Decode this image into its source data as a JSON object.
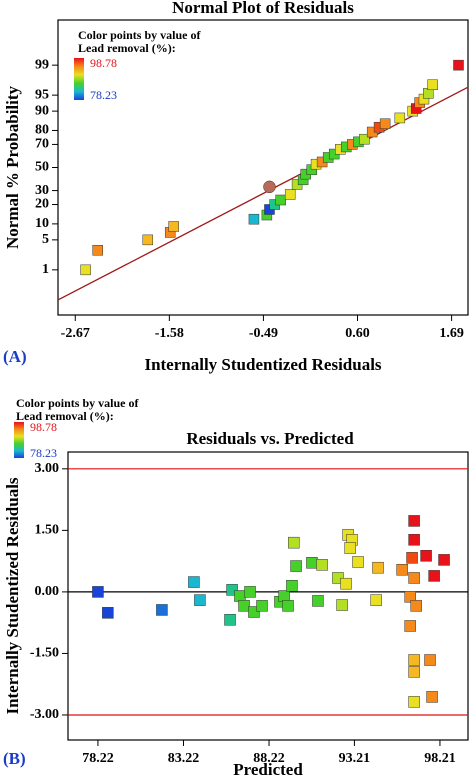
{
  "chart_data": [
    {
      "type": "scatter",
      "title": "Normal Plot of Residuals",
      "panel": "(A)",
      "x_label": "Internally Studentized Residuals",
      "y_label": "Normal % Probability",
      "yscale": "probability",
      "xlim": [
        -2.87,
        1.88
      ],
      "xticks": [
        -2.67,
        -1.58,
        -0.49,
        {
          "value": 0.6,
          "label": "0.60"
        },
        1.69
      ],
      "ylim": [
        0.04,
        99.96
      ],
      "yticks": [
        1,
        5,
        10,
        20,
        30,
        50,
        70,
        80,
        90,
        95,
        99
      ],
      "legend": {
        "title": "Color points by value of",
        "subtitle": "Lead removal (%):",
        "max": 98.78,
        "min": 78.23,
        "max_color": "#e8121a",
        "min_color": "#1838d0",
        "colors": [
          "#e8121a",
          "#f58a1a",
          "#e8e020",
          "#46d12a",
          "#1ab8d0",
          "#1844d8"
        ]
      },
      "fit_line": {
        "x": [
          -2.87,
          1.88
        ],
        "y": [
          0.13,
          96.6
        ],
        "color": "#a01818"
      },
      "series": [
        {
          "marker": "square",
          "x": [
            -2.55,
            -2.41,
            -1.83,
            -1.57,
            -1.53,
            -0.6,
            -0.45,
            -0.42,
            -0.36,
            -0.29,
            -0.18,
            -0.1,
            -0.03,
            0.0,
            0.07,
            0.12,
            0.19,
            0.26,
            0.33,
            0.4,
            0.47,
            0.54,
            0.61,
            0.68,
            0.77,
            0.85,
            0.92,
            1.09,
            1.24,
            1.28,
            1.32,
            1.37,
            1.42,
            1.47,
            1.77
          ],
          "values": [
            1,
            3,
            5,
            7,
            9,
            12,
            14,
            17,
            20,
            23,
            27,
            35,
            39,
            44,
            48,
            53,
            55,
            59,
            62,
            66,
            68,
            70,
            72,
            74,
            79,
            82,
            84,
            87,
            90,
            91,
            93,
            94,
            95.4,
            97,
            99
          ],
          "colors": [
            "#e8e020",
            "#f58a1a",
            "#f5b820",
            "#f58a1a",
            "#f5b820",
            "#1ab8d0",
            "#46d12a",
            "#1844d8",
            "#1fc48a",
            "#46d12a",
            "#e8e020",
            "#b4e024",
            "#46d12a",
            "#46d12a",
            "#46d12a",
            "#e8e020",
            "#f58a1a",
            "#46d12a",
            "#46d12a",
            "#e8e020",
            "#46d12a",
            "#f58a1a",
            "#46d12a",
            "#b4e024",
            "#f58a1a",
            "#f04a10",
            "#f58a1a",
            "#e8e020",
            "#e8e020",
            "#e8121a",
            "#f58a1a",
            "#e8e020",
            "#b4e024",
            "#e8e020",
            "#e8121a"
          ]
        },
        {
          "marker": "circle",
          "x": [
            -0.42
          ],
          "values": [
            33
          ],
          "colors": [
            "#b86a5a"
          ]
        }
      ]
    },
    {
      "type": "scatter",
      "title": "Residuals vs. Predicted",
      "panel": "(B)",
      "x_label": "Predicted",
      "y_label": "Internally Studentized Residuals",
      "xlim": [
        76.47,
        99.85
      ],
      "xticks": [
        78.22,
        83.22,
        88.22,
        93.21,
        98.21
      ],
      "ylim": [
        -3.61,
        3.41
      ],
      "yticks": [
        {
          "value": 3,
          "label": "3.00"
        },
        {
          "value": 1.5,
          "label": "1.50"
        },
        {
          "value": 0,
          "label": "0.00"
        },
        {
          "value": -1.5,
          "label": "-1.50"
        },
        {
          "value": -3,
          "label": "-3.00"
        }
      ],
      "legend": {
        "title": "Color points by value of",
        "subtitle": "Lead removal (%):",
        "max": 98.78,
        "min": 78.23,
        "max_color": "#e8121a",
        "min_color": "#1838d0",
        "colors": [
          "#e8121a",
          "#f58a1a",
          "#e8e020",
          "#46d12a",
          "#1ab8d0",
          "#1844d8"
        ]
      },
      "hlines": [
        {
          "value": 3,
          "color": "#e01010"
        },
        {
          "value": 0,
          "color": "#000000"
        },
        {
          "value": -3,
          "color": "#e01010"
        }
      ],
      "series": [
        {
          "marker": "square",
          "x": [
            78.22,
            78.8,
            81.96,
            83.83,
            84.18,
            86.06,
            85.94,
            86.52,
            86.76,
            87.11,
            87.34,
            87.81,
            88.86,
            89.1,
            89.33,
            89.56,
            89.67,
            89.8,
            90.73,
            91.32,
            91.08,
            92.25,
            92.49,
            92.72,
            92.84,
            93.07,
            92.96,
            93.42,
            94.48,
            94.59,
            96.0,
            96.47,
            96.7,
            96.7,
            96.58,
            96.7,
            96.82,
            96.7,
            96.7,
            96.7,
            97.4,
            97.63,
            97.87,
            98.45,
            97.75,
            96.47
          ],
          "values": [
            0.0,
            -0.51,
            -0.44,
            0.24,
            -0.2,
            0.05,
            -0.68,
            -0.1,
            -0.34,
            0.0,
            -0.49,
            -0.34,
            -0.24,
            -0.1,
            -0.34,
            0.15,
            1.2,
            0.63,
            0.71,
            0.66,
            -0.22,
            0.34,
            -0.32,
            0.2,
            1.39,
            1.27,
            1.07,
            0.73,
            -0.2,
            0.59,
            0.54,
            -0.12,
            1.73,
            1.27,
            0.83,
            0.34,
            -0.34,
            -1.66,
            -1.95,
            -2.68,
            0.88,
            -1.66,
            0.39,
            0.78,
            -2.56,
            -0.83
          ],
          "colors": [
            "#1844d8",
            "#1844d8",
            "#1a70d8",
            "#1ab8d0",
            "#1ab8d0",
            "#1fc48a",
            "#1fc48a",
            "#46d12a",
            "#46d12a",
            "#46d12a",
            "#46d12a",
            "#46d12a",
            "#46d12a",
            "#46d12a",
            "#46d12a",
            "#46d12a",
            "#b4e024",
            "#46d12a",
            "#46d12a",
            "#b4e024",
            "#46d12a",
            "#b4e024",
            "#b4e024",
            "#e8e020",
            "#e8e020",
            "#e8e020",
            "#e8e020",
            "#e8e020",
            "#e8e020",
            "#f5b820",
            "#f58a1a",
            "#f58a1a",
            "#e8121a",
            "#e8121a",
            "#f04a10",
            "#f58a1a",
            "#f58a1a",
            "#f5b820",
            "#f5b820",
            "#e8e020",
            "#e8121a",
            "#f58a1a",
            "#e8121a",
            "#e8121a",
            "#f58a1a",
            "#f58a1a"
          ]
        }
      ]
    }
  ]
}
